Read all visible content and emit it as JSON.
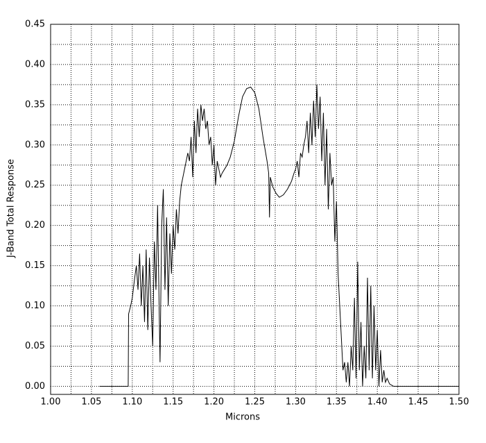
{
  "chart_data": {
    "type": "line",
    "xlabel": "Microns",
    "ylabel": "J-Band Total Response",
    "color": "#000000",
    "grid": true,
    "xlim": [
      1.0,
      1.5
    ],
    "ylim": [
      -0.01,
      0.45
    ],
    "xticks": [
      {
        "value": 1.0,
        "label": "1.00"
      },
      {
        "value": 1.05,
        "label": "1.05"
      },
      {
        "value": 1.1,
        "label": "1.10"
      },
      {
        "value": 1.15,
        "label": "1.15"
      },
      {
        "value": 1.2,
        "label": "1.20"
      },
      {
        "value": 1.25,
        "label": "1.25"
      },
      {
        "value": 1.3,
        "label": "1.30"
      },
      {
        "value": 1.35,
        "label": "1.35"
      },
      {
        "value": 1.4,
        "label": "1.40"
      },
      {
        "value": 1.45,
        "label": "1.45"
      },
      {
        "value": 1.5,
        "label": "1.50"
      }
    ],
    "yticks": [
      {
        "value": 0.0,
        "label": "0.00"
      },
      {
        "value": 0.05,
        "label": "0.05"
      },
      {
        "value": 0.1,
        "label": "0.10"
      },
      {
        "value": 0.15,
        "label": "0.15"
      },
      {
        "value": 0.2,
        "label": "0.20"
      },
      {
        "value": 0.25,
        "label": "0.25"
      },
      {
        "value": 0.3,
        "label": "0.30"
      },
      {
        "value": 0.35,
        "label": "0.35"
      },
      {
        "value": 0.4,
        "label": "0.40"
      },
      {
        "value": 0.45,
        "label": "0.45"
      }
    ],
    "x_minor_ticks": [
      1.025,
      1.075,
      1.125,
      1.175,
      1.225,
      1.275,
      1.325,
      1.375,
      1.425,
      1.475
    ],
    "y_minor_ticks": [
      0.025,
      0.075,
      0.125,
      0.175,
      0.225,
      0.275,
      0.325,
      0.375,
      0.425
    ],
    "x": [
      1.06,
      1.095,
      1.0955,
      1.098,
      1.1,
      1.103,
      1.105,
      1.107,
      1.109,
      1.111,
      1.113,
      1.115,
      1.117,
      1.119,
      1.121,
      1.123,
      1.125,
      1.127,
      1.129,
      1.131,
      1.133,
      1.134,
      1.136,
      1.138,
      1.14,
      1.142,
      1.144,
      1.146,
      1.148,
      1.15,
      1.152,
      1.154,
      1.156,
      1.158,
      1.16,
      1.162,
      1.165,
      1.168,
      1.17,
      1.172,
      1.174,
      1.176,
      1.178,
      1.18,
      1.182,
      1.184,
      1.186,
      1.188,
      1.19,
      1.192,
      1.194,
      1.196,
      1.198,
      1.2,
      1.202,
      1.204,
      1.206,
      1.208,
      1.21,
      1.213,
      1.216,
      1.22,
      1.225,
      1.23,
      1.235,
      1.24,
      1.245,
      1.25,
      1.255,
      1.26,
      1.265,
      1.267,
      1.268,
      1.269,
      1.272,
      1.276,
      1.28,
      1.285,
      1.29,
      1.295,
      1.298,
      1.3,
      1.302,
      1.304,
      1.306,
      1.308,
      1.31,
      1.312,
      1.314,
      1.316,
      1.318,
      1.32,
      1.322,
      1.324,
      1.326,
      1.328,
      1.33,
      1.332,
      1.334,
      1.336,
      1.338,
      1.34,
      1.342,
      1.344,
      1.346,
      1.348,
      1.35,
      1.352,
      1.354,
      1.356,
      1.358,
      1.36,
      1.362,
      1.364,
      1.366,
      1.368,
      1.37,
      1.372,
      1.374,
      1.376,
      1.378,
      1.38,
      1.382,
      1.384,
      1.386,
      1.388,
      1.39,
      1.392,
      1.394,
      1.396,
      1.398,
      1.4,
      1.402,
      1.404,
      1.406,
      1.408,
      1.41,
      1.412,
      1.415,
      1.42,
      1.5
    ],
    "values": [
      0,
      0,
      0.09,
      0.1,
      0.11,
      0.135,
      0.15,
      0.12,
      0.165,
      0.1,
      0.15,
      0.08,
      0.17,
      0.07,
      0.16,
      0.1,
      0.05,
      0.18,
      0.12,
      0.225,
      0.09,
      0.03,
      0.2,
      0.245,
      0.12,
      0.21,
      0.1,
      0.19,
      0.14,
      0.2,
      0.17,
      0.22,
      0.19,
      0.23,
      0.25,
      0.26,
      0.275,
      0.29,
      0.28,
      0.31,
      0.26,
      0.33,
      0.29,
      0.345,
      0.31,
      0.35,
      0.33,
      0.345,
      0.32,
      0.33,
      0.3,
      0.31,
      0.275,
      0.3,
      0.25,
      0.28,
      0.27,
      0.26,
      0.265,
      0.27,
      0.275,
      0.285,
      0.305,
      0.335,
      0.36,
      0.37,
      0.372,
      0.365,
      0.345,
      0.31,
      0.28,
      0.265,
      0.21,
      0.26,
      0.248,
      0.24,
      0.235,
      0.238,
      0.245,
      0.255,
      0.265,
      0.27,
      0.28,
      0.26,
      0.29,
      0.285,
      0.3,
      0.31,
      0.33,
      0.29,
      0.34,
      0.3,
      0.355,
      0.31,
      0.375,
      0.32,
      0.36,
      0.28,
      0.34,
      0.25,
      0.32,
      0.22,
      0.29,
      0.25,
      0.26,
      0.18,
      0.23,
      0.14,
      0.1,
      0.06,
      0.02,
      0.03,
      0.005,
      0.03,
      0.0,
      0.05,
      0.02,
      0.11,
      0.01,
      0.155,
      0.02,
      0.08,
      0.0,
      0.05,
      0.01,
      0.135,
      0.02,
      0.125,
      0.01,
      0.1,
      0.02,
      0.07,
      0.0,
      0.045,
      0.005,
      0.02,
      0.005,
      0.01,
      0.003,
      0,
      0
    ]
  }
}
